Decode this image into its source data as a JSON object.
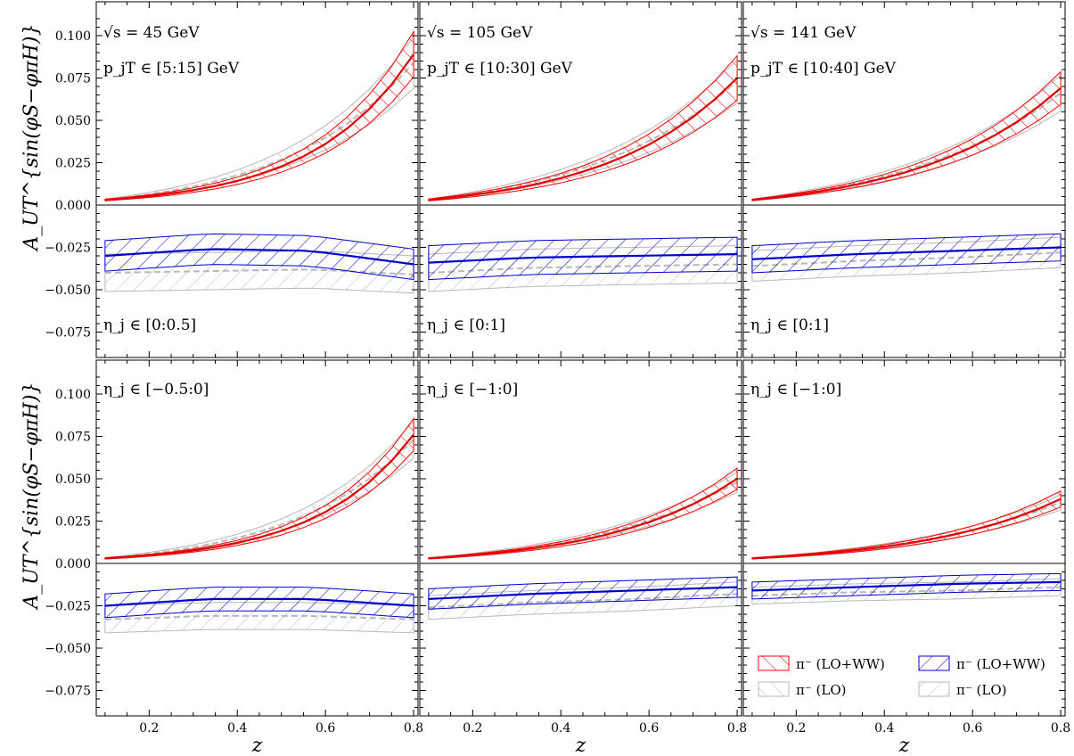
{
  "chart_data": {
    "type": "line",
    "xlabel": "z",
    "ylabel": "A_UT^{sin(φS−φπH)}",
    "xticks": [
      "0.2",
      "0.4",
      "0.6",
      "0.8"
    ],
    "yticks": [
      "0.100",
      "0.075",
      "0.050",
      "0.025",
      "0.000",
      "−0.025",
      "−0.050",
      "−0.075"
    ],
    "xlim": [
      0.08,
      0.81
    ],
    "ylim": [
      -0.09,
      0.12
    ],
    "x": [
      0.1,
      0.15,
      0.2,
      0.25,
      0.3,
      0.35,
      0.4,
      0.45,
      0.5,
      0.55,
      0.6,
      0.65,
      0.7,
      0.75,
      0.8
    ],
    "grid": false,
    "colors": {
      "pi_plus_lo_ww": "#ff0000",
      "pi_minus_lo_ww": "#0000cc",
      "lo": "#b8b8b8"
    },
    "legend": [
      {
        "label": "π⁻ (LO+WW)",
        "color": "#ff0000",
        "style": "hatch"
      },
      {
        "label": "π⁻ (LO+WW)",
        "color": "#0000cc",
        "style": "hatch"
      },
      {
        "label": "π⁻ (LO)",
        "color": "#b8b8b8",
        "style": "hatch"
      },
      {
        "label": "π⁻ (LO)",
        "color": "#b8b8b8",
        "style": "hatch"
      }
    ],
    "legend_position": "lower-right",
    "panels": [
      {
        "row": 0,
        "col": 0,
        "labels": [
          "√s = 45 GeV",
          "p_jT ∈ [5:15] GeV",
          "η_j ∈ [0:0.5]"
        ],
        "red": {
          "peak": 0.086,
          "rel": 0.3,
          "k": 3.1
        },
        "red_lo": {
          "peak": 0.081,
          "rel": 0.36,
          "k": 2.4
        },
        "blue": [
          -0.03,
          -0.026,
          -0.027,
          -0.035
        ],
        "blue_band": 0.009,
        "blue_lo": [
          -0.04,
          -0.039,
          -0.038,
          -0.041
        ],
        "blue_lo_band": 0.011
      },
      {
        "row": 0,
        "col": 1,
        "labels": [
          "√s = 105 GeV",
          "p_jT ∈ [10:30] GeV",
          "η_j ∈ [0:1]"
        ],
        "red": {
          "peak": 0.072,
          "rel": 0.35,
          "k": 2.4
        },
        "red_lo": {
          "peak": 0.07,
          "rel": 0.35,
          "k": 2.0
        },
        "blue": [
          -0.034,
          -0.031,
          -0.03,
          -0.029
        ],
        "blue_band": 0.01,
        "blue_lo": [
          -0.04,
          -0.037,
          -0.036,
          -0.035
        ],
        "blue_lo_band": 0.011
      },
      {
        "row": 0,
        "col": 2,
        "labels": [
          "√s = 141 GeV",
          "p_jT ∈ [10:40] GeV",
          "η_j ∈ [0:1]"
        ],
        "red": {
          "peak": 0.066,
          "rel": 0.28,
          "k": 2.2
        },
        "red_lo": {
          "peak": 0.063,
          "rel": 0.32,
          "k": 1.9
        },
        "blue": [
          -0.032,
          -0.029,
          -0.027,
          -0.025
        ],
        "blue_band": 0.008,
        "blue_lo": [
          -0.036,
          -0.033,
          -0.031,
          -0.028
        ],
        "blue_lo_band": 0.009
      },
      {
        "row": 1,
        "col": 0,
        "labels": [
          "η_j ∈ [−0.5:0]"
        ],
        "red": {
          "peak": 0.073,
          "rel": 0.25,
          "k": 3.2
        },
        "red_lo": {
          "peak": 0.07,
          "rel": 0.3,
          "k": 2.5
        },
        "blue": [
          -0.025,
          -0.021,
          -0.021,
          -0.025
        ],
        "blue_band": 0.007,
        "blue_lo": [
          -0.033,
          -0.031,
          -0.031,
          -0.033
        ],
        "blue_lo_band": 0.008
      },
      {
        "row": 1,
        "col": 1,
        "labels": [
          "η_j ∈ [−1:0]"
        ],
        "red": {
          "peak": 0.047,
          "rel": 0.25,
          "k": 2.4
        },
        "red_lo": {
          "peak": 0.045,
          "rel": 0.25,
          "k": 2.0
        },
        "blue": [
          -0.021,
          -0.018,
          -0.016,
          -0.014
        ],
        "blue_band": 0.006,
        "blue_lo": [
          -0.026,
          -0.023,
          -0.021,
          -0.018
        ],
        "blue_lo_band": 0.007
      },
      {
        "row": 1,
        "col": 2,
        "labels": [
          "η_j ∈ [−1:0]"
        ],
        "red": {
          "peak": 0.035,
          "rel": 0.25,
          "k": 2.2
        },
        "red_lo": {
          "peak": 0.033,
          "rel": 0.25,
          "k": 1.9
        },
        "blue": [
          -0.016,
          -0.014,
          -0.012,
          -0.011
        ],
        "blue_band": 0.005,
        "blue_lo": [
          -0.019,
          -0.017,
          -0.016,
          -0.014
        ],
        "blue_lo_band": 0.005
      }
    ]
  }
}
